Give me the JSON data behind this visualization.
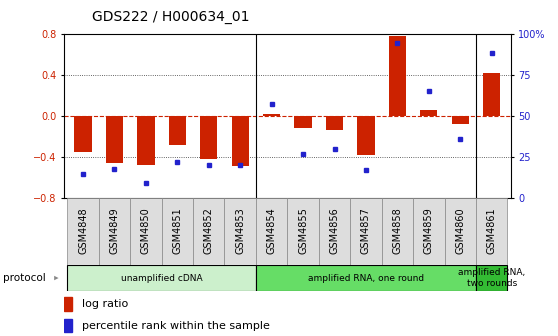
{
  "title": "GDS222 / H000634_01",
  "samples": [
    "GSM4848",
    "GSM4849",
    "GSM4850",
    "GSM4851",
    "GSM4852",
    "GSM4853",
    "GSM4854",
    "GSM4855",
    "GSM4856",
    "GSM4857",
    "GSM4858",
    "GSM4859",
    "GSM4860",
    "GSM4861"
  ],
  "log_ratio": [
    -0.35,
    -0.46,
    -0.48,
    -0.28,
    -0.42,
    -0.49,
    0.02,
    -0.12,
    -0.14,
    -0.38,
    0.78,
    0.06,
    -0.08,
    0.42
  ],
  "percentile_rank": [
    15,
    18,
    9,
    22,
    20,
    20,
    57,
    27,
    30,
    17,
    94,
    65,
    36,
    88
  ],
  "bar_color": "#cc2200",
  "dot_color": "#2222cc",
  "ylim_left": [
    -0.8,
    0.8
  ],
  "ylim_right": [
    0,
    100
  ],
  "yticks_left": [
    -0.8,
    -0.4,
    0.0,
    0.4,
    0.8
  ],
  "yticks_right": [
    0,
    25,
    50,
    75,
    100
  ],
  "ytick_labels_right": [
    "0",
    "25",
    "50",
    "75",
    "100%"
  ],
  "hlines_dotted": [
    -0.4,
    0.4
  ],
  "hline_dashed": 0.0,
  "protocol_groups": [
    {
      "label": "unamplified cDNA",
      "start": 0,
      "end": 5,
      "color": "#ccf0cc"
    },
    {
      "label": "amplified RNA, one round",
      "start": 6,
      "end": 12,
      "color": "#66dd66"
    },
    {
      "label": "amplified RNA,\ntwo rounds",
      "start": 13,
      "end": 13,
      "color": "#33bb33"
    }
  ],
  "legend_bar_label": "log ratio",
  "legend_dot_label": "percentile rank within the sample",
  "background_color": "#ffffff",
  "plot_bg_color": "#ffffff",
  "title_fontsize": 10,
  "tick_fontsize": 7,
  "legend_fontsize": 8,
  "sample_tick_bg": "#dddddd"
}
